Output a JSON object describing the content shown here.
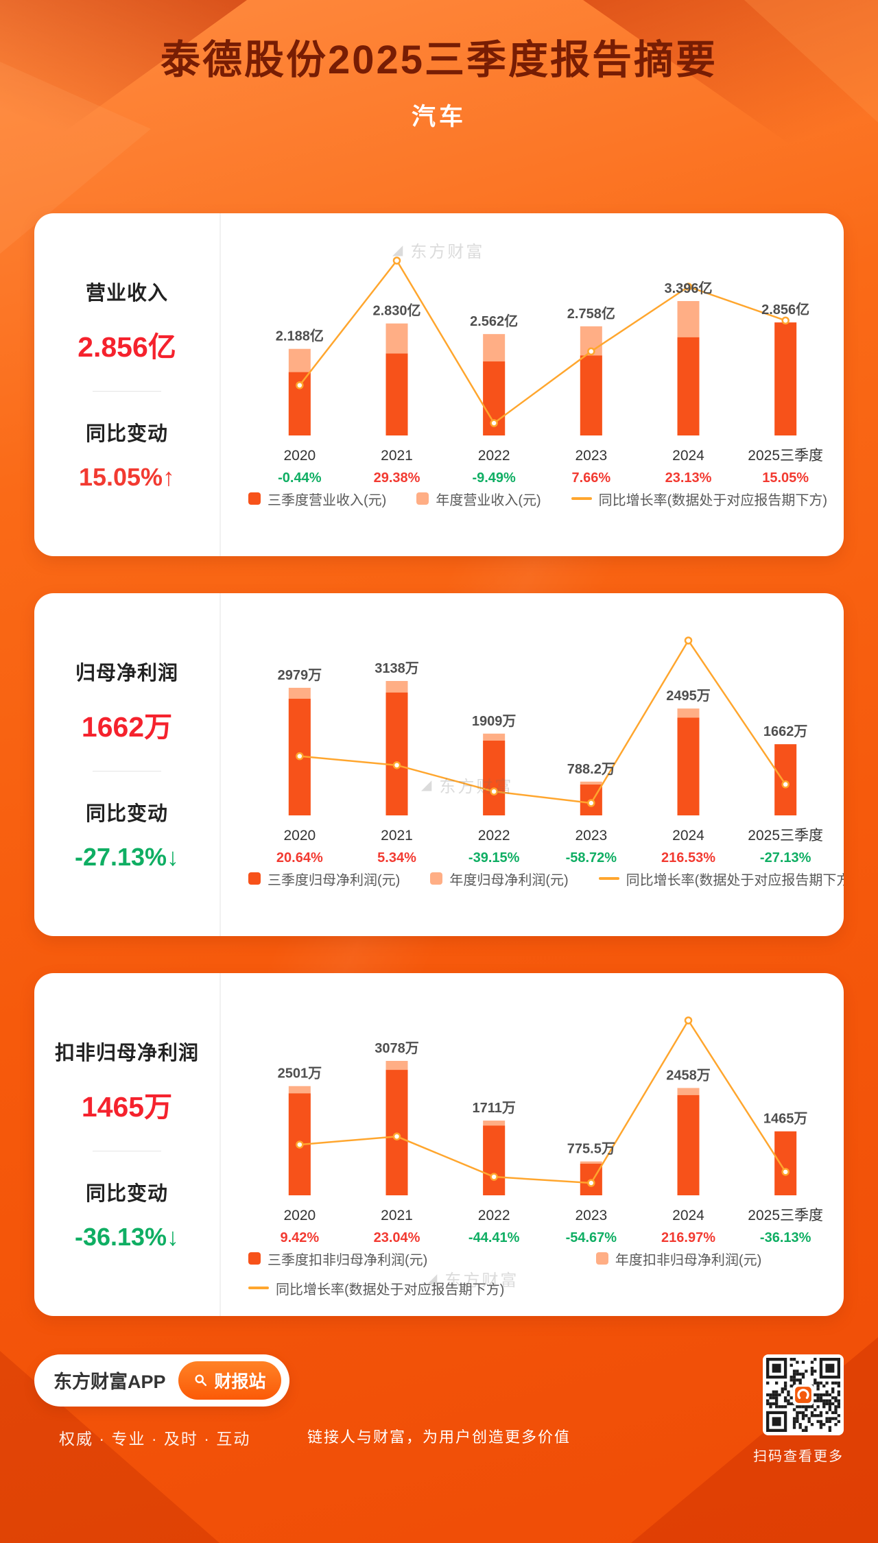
{
  "header": {
    "title": "泰德股份2025三季度报告摘要",
    "subtitle": "汽车"
  },
  "watermark": "东方财富",
  "colors": {
    "bar_q3": "#f7521a",
    "bar_annual": "#ffae85",
    "line": "#ffa62e",
    "positive": "#f23a31",
    "negative": "#0fae63",
    "metric_red": "#f5222d"
  },
  "panels": [
    {
      "metric_name": "营业收入",
      "metric_value": "2.856亿",
      "change_label": "同比变动",
      "change_value": "15.05%↑",
      "change_direction": "up",
      "legend": [
        "三季度营业收入(元)",
        "年度营业收入(元)",
        "同比增长率(数据处于对应报告期下方)"
      ]
    },
    {
      "metric_name": "归母净利润",
      "metric_value": "1662万",
      "change_label": "同比变动",
      "change_value": "-27.13%↓",
      "change_direction": "down",
      "legend": [
        "三季度归母净利润(元)",
        "年度归母净利润(元)",
        "同比增长率(数据处于对应报告期下方)"
      ]
    },
    {
      "metric_name": "扣非归母净利润",
      "metric_value": "1465万",
      "change_label": "同比变动",
      "change_value": "-36.13%↓",
      "change_direction": "down",
      "legend": [
        "三季度扣非归母净利润(元)",
        "年度扣非归母净利润(元)",
        "同比增长率(数据处于对应报告期下方)"
      ]
    }
  ],
  "chart_data": [
    {
      "type": "bar",
      "subtype": "bar+line",
      "title": "营业收入",
      "unit": "亿元",
      "categories": [
        "2020",
        "2021",
        "2022",
        "2023",
        "2024",
        "2025三季度"
      ],
      "series": [
        {
          "name": "三季度营业收入(元)",
          "kind": "bar",
          "values": [
            1.6,
            2.07,
            1.87,
            2.02,
            2.48,
            2.856
          ]
        },
        {
          "name": "年度营业收入(元)",
          "kind": "bar",
          "values": [
            2.188,
            2.83,
            2.562,
            2.758,
            3.396,
            null
          ]
        },
        {
          "name": "同比增长率(%)",
          "kind": "line",
          "values": [
            -0.44,
            29.38,
            -9.49,
            7.66,
            23.13,
            15.05
          ]
        }
      ],
      "bar_labels": [
        "2.188亿",
        "2.830亿",
        "2.562亿",
        "2.758亿",
        "3.396亿",
        "2.856亿"
      ],
      "growth_labels": [
        "-0.44%",
        "29.38%",
        "-9.49%",
        "7.66%",
        "23.13%",
        "15.05%"
      ]
    },
    {
      "type": "bar",
      "subtype": "bar+line",
      "title": "归母净利润",
      "unit": "万元",
      "categories": [
        "2020",
        "2021",
        "2022",
        "2023",
        "2024",
        "2025三季度"
      ],
      "series": [
        {
          "name": "三季度归母净利润(元)",
          "kind": "bar",
          "values": [
            2723,
            2868,
            1745,
            720,
            2281,
            1662
          ]
        },
        {
          "name": "年度归母净利润(元)",
          "kind": "bar",
          "values": [
            2979,
            3138,
            1909,
            788.2,
            2495,
            null
          ]
        },
        {
          "name": "同比增长率(%)",
          "kind": "line",
          "values": [
            20.64,
            5.34,
            -39.15,
            -58.72,
            216.53,
            -27.13
          ]
        }
      ],
      "bar_labels": [
        "2979万",
        "3138万",
        "1909万",
        "788.2万",
        "2495万",
        "1662万"
      ],
      "growth_labels": [
        "20.64%",
        "5.34%",
        "-39.15%",
        "-58.72%",
        "216.53%",
        "-27.13%"
      ]
    },
    {
      "type": "bar",
      "subtype": "bar+line",
      "title": "扣非归母净利润",
      "unit": "万元",
      "categories": [
        "2020",
        "2021",
        "2022",
        "2023",
        "2024",
        "2025三季度"
      ],
      "series": [
        {
          "name": "三季度扣非归母净利润(元)",
          "kind": "bar",
          "values": [
            2334,
            2872,
            1596,
            724,
            2294,
            1465
          ]
        },
        {
          "name": "年度扣非归母净利润(元)",
          "kind": "bar",
          "values": [
            2501,
            3078,
            1711,
            775.5,
            2458,
            null
          ]
        },
        {
          "name": "同比增长率(%)",
          "kind": "line",
          "values": [
            9.42,
            23.04,
            -44.41,
            -54.67,
            216.97,
            -36.13
          ]
        }
      ],
      "bar_labels": [
        "2501万",
        "3078万",
        "1711万",
        "775.5万",
        "2458万",
        "1465万"
      ],
      "growth_labels": [
        "9.42%",
        "23.04%",
        "-44.41%",
        "-54.67%",
        "216.97%",
        "-36.13%"
      ]
    }
  ],
  "bottom": {
    "app_name": "东方财富APP",
    "app_button": "财报站",
    "tagline": "权威 · 专业 · 及时 · 互动",
    "qr_caption": "扫码查看更多"
  },
  "footer": {
    "slogan": "链接人与财富，为用户创造更多价值"
  }
}
